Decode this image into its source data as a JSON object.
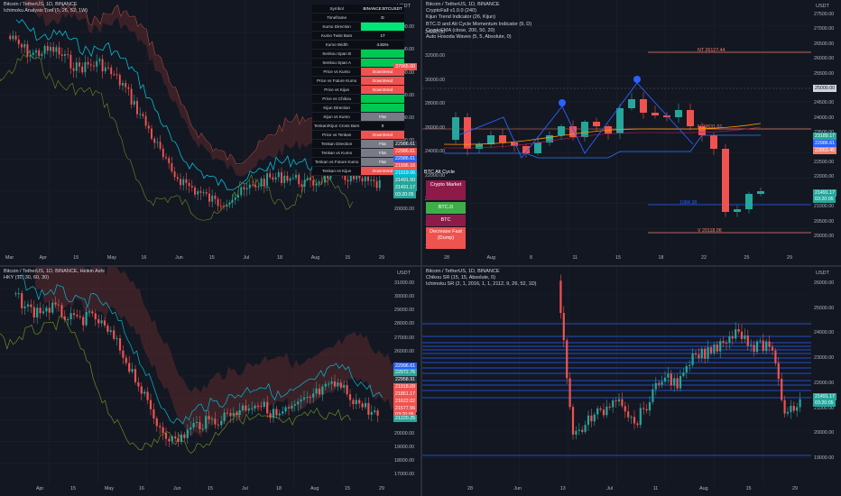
{
  "colors": {
    "bg": "#131722",
    "up": "#26a69a",
    "down": "#ef5350",
    "grid": "#1e222d",
    "cloud_red": "#5b2a2e",
    "cloud_green": "#1e3b2c",
    "blue": "#2962ff",
    "teal": "#00bcd4",
    "orange": "#ff9800",
    "olive": "#6b8e23"
  },
  "tl": {
    "header": [
      "Bitcoin / TetherUS, 1D, BINANCE",
      "Ichimoku Analysis Tool (9, 26, 52, 1W)"
    ],
    "unit": "USDT",
    "y_labels": [
      "36000.00",
      "34000.00",
      "32000.00",
      "30000.00",
      "28000.00",
      "26000.00",
      "24000.00",
      "22000.00",
      "20000.00"
    ],
    "x_labels": [
      "Mar",
      "Apr",
      "15",
      "May",
      "16",
      "Jun",
      "15",
      "Jul",
      "18",
      "Aug",
      "15",
      "29"
    ],
    "price_tags": [
      {
        "text": "37965.00",
        "color": "#ef5350"
      },
      {
        "text": "22986.61",
        "color": "#2a2e39"
      },
      {
        "text": "22986.61",
        "color": "#ef5350"
      },
      {
        "text": "22986.61",
        "color": "#2962ff"
      },
      {
        "text": "21996.16",
        "color": "#ef5350"
      },
      {
        "text": "21919.06",
        "color": "#00bcd4"
      },
      {
        "text": "21491.50",
        "color": "#26a69a"
      },
      {
        "text": "21491.17",
        "color": "#26a69a"
      },
      {
        "text": "03:20:05",
        "color": "#26a69a"
      }
    ],
    "table": [
      {
        "label": "Symbol",
        "value": "BINANCE:BTCUSDT",
        "color": "#0c0e15"
      },
      {
        "label": "Timeframe",
        "value": "D",
        "color": "#0c0e15"
      },
      {
        "label": "Kumo Direction",
        "value": "",
        "color": "#00e676"
      },
      {
        "label": "Kumo Twist Bars",
        "value": "17",
        "color": "#0c0e15"
      },
      {
        "label": "Kumo Width",
        "value": "4.81%",
        "color": "#0c0e15"
      },
      {
        "label": "Senkou Span B",
        "value": "",
        "color": "#00c853"
      },
      {
        "label": "Senkou Span A",
        "value": "",
        "color": "#00c853"
      },
      {
        "label": "Price vs Kumo",
        "value": "Downtrend",
        "color": "#ef5350"
      },
      {
        "label": "Price vs Future Kumo",
        "value": "Downtrend",
        "color": "#ef5350"
      },
      {
        "label": "Price vs Kijun",
        "value": "Downtrend",
        "color": "#ef5350"
      },
      {
        "label": "Price vs Chikou",
        "value": "",
        "color": "#00c853"
      },
      {
        "label": "Kijun Direction",
        "value": "",
        "color": "#00c853"
      },
      {
        "label": "Kijun vs Kumo",
        "value": "Flat",
        "color": "#787b86"
      },
      {
        "label": "Tenkan/Kijun Cross Bars",
        "value": "0",
        "color": "#0c0e15"
      },
      {
        "label": "Price vs Tenkan",
        "value": "Downtrend",
        "color": "#ef5350"
      },
      {
        "label": "Tenkan Direction",
        "value": "Flat",
        "color": "#787b86"
      },
      {
        "label": "Tenkan vs Kumo",
        "value": "Flat",
        "color": "#787b86"
      },
      {
        "label": "Tenkan vs Future Kumo",
        "value": "Flat",
        "color": "#787b86"
      },
      {
        "label": "Tenkan vs Kijun",
        "value": "Downtrend",
        "color": "#ef5350"
      }
    ]
  },
  "tr": {
    "header": [
      "Bitcoin / TetherUS, 1D, BINANCE",
      "CryptoFall v1.0.0 (240)",
      "Kijun Trend Indicator (26, Kijun)",
      "BTC.D and Alt Cycle Momentum Indicator (9, D)",
      "CryptoEMA (close, 200, 50, 20)",
      "Auto Hosoda Waves (5, 5, Absolute, 0)"
    ],
    "unit": "USDT",
    "y_labels": [
      "27500.00",
      "27000.00",
      "26500.00",
      "26000.00",
      "25500.00",
      "25000.00",
      "24500.00",
      "24000.00",
      "23500.00",
      "23000.00",
      "22500.00",
      "22000.00",
      "21500.00",
      "21000.00",
      "20500.00",
      "20000.00"
    ],
    "x_labels": [
      "28",
      "Aug",
      "8",
      "11",
      "15",
      "18",
      "22",
      "25",
      "29"
    ],
    "left_axis": [
      "34000.00",
      "32000.00",
      "30000.00",
      "28000.00",
      "26000.00",
      "24000.00",
      "22000.00",
      "20000.00",
      "18000.00",
      "16000.00"
    ],
    "lines": [
      {
        "text": "NT 26127.44",
        "color": "#f57f6c"
      },
      {
        "text": "N 23631.01",
        "color": "#f57f6c"
      },
      {
        "text": "1084.38",
        "color": "#2962ff"
      },
      {
        "text": "V 20118.06",
        "color": "#f57f6c"
      }
    ],
    "price_tags": [
      {
        "text": "25000.00",
        "color": "#d1d4dc"
      },
      {
        "text": "23189.17",
        "color": "#26a69a"
      },
      {
        "text": "22986.61",
        "color": "#2962ff"
      },
      {
        "text": "22863.45",
        "color": "#f57f6c"
      },
      {
        "text": "21491.17",
        "color": "#26a69a"
      },
      {
        "text": "03:20:05",
        "color": "#26a69a"
      }
    ],
    "labels": {
      "alt_cycle": "BTC Alt Cycle",
      "crypto_market": "Crypto Market",
      "btcd": "BTC.D",
      "btc": "BTC",
      "decrease": "Decrease Fast (Dump)"
    }
  },
  "bl": {
    "header": [
      "Bitcoin / TetherUS, 1D, BINANCE, Heikin Ashi",
      "HKY (10, 30, 60, 30)"
    ],
    "unit": "USDT",
    "y_labels": [
      "31000.00",
      "30000.00",
      "29000.00",
      "28000.00",
      "27000.00",
      "26000.00",
      "25000.00",
      "24000.00",
      "23000.00",
      "22000.00",
      "21000.00",
      "20000.00",
      "19000.00",
      "18000.00",
      "17000.00"
    ],
    "x_labels": [
      "Apr",
      "15",
      "May",
      "16",
      "Jun",
      "15",
      "Jul",
      "18",
      "Aug",
      "15",
      "29"
    ],
    "price_tags": [
      {
        "text": "22996.61",
        "color": "#2962ff"
      },
      {
        "text": "22972.76",
        "color": "#26a69a"
      },
      {
        "text": "22958.91",
        "color": "#2a2e39"
      },
      {
        "text": "21918.09",
        "color": "#ef5350"
      },
      {
        "text": "21851.17",
        "color": "#ef5350"
      },
      {
        "text": "21622.02",
        "color": "#ef5350"
      },
      {
        "text": "21577.56",
        "color": "#ef5350"
      },
      {
        "text": "03:20:05",
        "color": "#ef5350"
      },
      {
        "text": "21220.25",
        "color": "#26a69a"
      }
    ]
  },
  "br": {
    "header": [
      "Bitcoin / TetherUS, 1D, BINANCE",
      "Chikou SR (15, 15, Absolute, 0)",
      "Ichimoku SR (2, 1, 2016, 1, 1, 2112, 9, 26, 52, 1D)"
    ],
    "unit": "USDT",
    "y_labels": [
      "26000.00",
      "25000.00",
      "24000.00",
      "23000.00",
      "22000.00",
      "21000.00",
      "20000.00",
      "19000.00"
    ],
    "x_labels": [
      "28",
      "Jun",
      "13",
      "Jul",
      "11",
      "Aug",
      "15",
      "29"
    ],
    "price_tags": [
      {
        "text": "21491.17",
        "color": "#26a69a"
      },
      {
        "text": "03:20:05",
        "color": "#26a69a"
      }
    ]
  }
}
